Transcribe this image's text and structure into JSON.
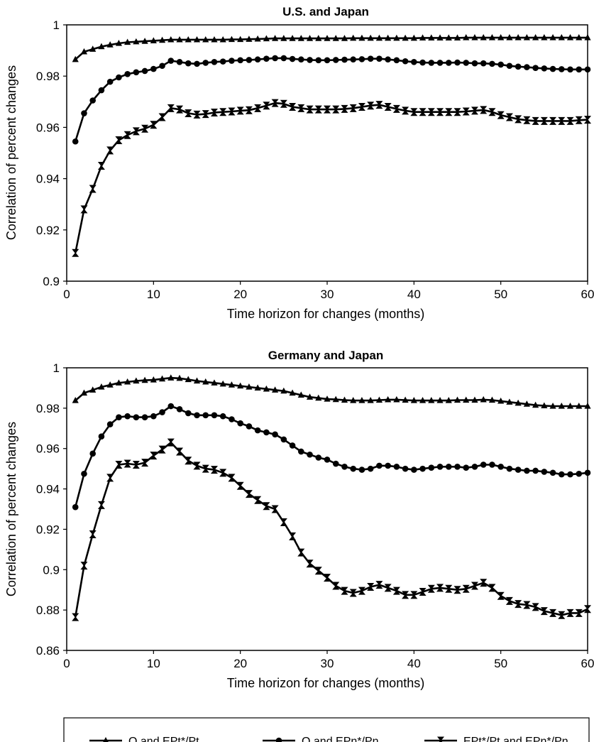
{
  "chart_data": [
    {
      "type": "line",
      "title": "U.S. and Japan",
      "xlabel": "Time horizon for changes (months)",
      "ylabel": "Correlation of percent changes",
      "xlim": [
        0,
        60
      ],
      "ylim": [
        0.9,
        1.0
      ],
      "xticks": [
        "0",
        "10",
        "20",
        "30",
        "40",
        "50",
        "60"
      ],
      "yticks": [
        "0.9",
        "0.92",
        "0.94",
        "0.96",
        "0.98",
        "1"
      ],
      "grid": false,
      "series": [
        {
          "name": "Q and EPt*/Pt",
          "marker": "triangle",
          "x": [
            1,
            2,
            3,
            4,
            5,
            6,
            7,
            8,
            9,
            10,
            11,
            12,
            13,
            14,
            15,
            16,
            17,
            18,
            19,
            20,
            21,
            22,
            23,
            24,
            25,
            26,
            27,
            28,
            29,
            30,
            31,
            32,
            33,
            34,
            35,
            36,
            37,
            38,
            39,
            40,
            41,
            42,
            43,
            44,
            45,
            46,
            47,
            48,
            49,
            50,
            51,
            52,
            53,
            54,
            55,
            56,
            57,
            58,
            59,
            60
          ],
          "values": [
            0.9865,
            0.9895,
            0.9905,
            0.9915,
            0.9922,
            0.9928,
            0.9932,
            0.9934,
            0.9936,
            0.9938,
            0.994,
            0.9942,
            0.9942,
            0.9942,
            0.9942,
            0.9942,
            0.9942,
            0.9942,
            0.9943,
            0.9943,
            0.9944,
            0.9945,
            0.9946,
            0.9947,
            0.9947,
            0.9947,
            0.9947,
            0.9947,
            0.9947,
            0.9947,
            0.9947,
            0.9947,
            0.9948,
            0.9948,
            0.9948,
            0.9948,
            0.9948,
            0.9948,
            0.9948,
            0.9948,
            0.9949,
            0.9949,
            0.9949,
            0.9949,
            0.9949,
            0.995,
            0.995,
            0.995,
            0.995,
            0.995,
            0.995,
            0.995,
            0.995,
            0.995,
            0.995,
            0.995,
            0.995,
            0.995,
            0.995,
            0.995
          ]
        },
        {
          "name": "Q and EPn*/Pn",
          "marker": "circle",
          "x": [
            1,
            2,
            3,
            4,
            5,
            6,
            7,
            8,
            9,
            10,
            11,
            12,
            13,
            14,
            15,
            16,
            17,
            18,
            19,
            20,
            21,
            22,
            23,
            24,
            25,
            26,
            27,
            28,
            29,
            30,
            31,
            32,
            33,
            34,
            35,
            36,
            37,
            38,
            39,
            40,
            41,
            42,
            43,
            44,
            45,
            46,
            47,
            48,
            49,
            50,
            51,
            52,
            53,
            54,
            55,
            56,
            57,
            58,
            59,
            60
          ],
          "values": [
            0.9545,
            0.9655,
            0.9705,
            0.9745,
            0.9778,
            0.9795,
            0.9808,
            0.9815,
            0.982,
            0.9828,
            0.984,
            0.986,
            0.9855,
            0.985,
            0.9848,
            0.9852,
            0.9855,
            0.9857,
            0.986,
            0.9862,
            0.9863,
            0.9865,
            0.9868,
            0.987,
            0.987,
            0.9867,
            0.9865,
            0.9863,
            0.9862,
            0.9862,
            0.9863,
            0.9864,
            0.9865,
            0.9866,
            0.9868,
            0.9868,
            0.9865,
            0.9862,
            0.9858,
            0.9855,
            0.9853,
            0.9852,
            0.9852,
            0.9852,
            0.9853,
            0.9852,
            0.985,
            0.985,
            0.9848,
            0.9845,
            0.984,
            0.9837,
            0.9835,
            0.9832,
            0.983,
            0.9828,
            0.9827,
            0.9826,
            0.9826,
            0.9826
          ]
        },
        {
          "name": "EPt*/Pt and EPn*/Pn",
          "marker": "hourglass",
          "x": [
            1,
            2,
            3,
            4,
            5,
            6,
            7,
            8,
            9,
            10,
            11,
            12,
            13,
            14,
            15,
            16,
            17,
            18,
            19,
            20,
            21,
            22,
            23,
            24,
            25,
            26,
            27,
            28,
            29,
            30,
            31,
            32,
            33,
            34,
            35,
            36,
            37,
            38,
            39,
            40,
            41,
            42,
            43,
            44,
            45,
            46,
            47,
            48,
            49,
            50,
            51,
            52,
            53,
            54,
            55,
            56,
            57,
            58,
            59,
            60
          ],
          "values": [
            0.911,
            0.928,
            0.936,
            0.945,
            0.951,
            0.955,
            0.957,
            0.9585,
            0.9595,
            0.961,
            0.964,
            0.9675,
            0.967,
            0.9655,
            0.965,
            0.9652,
            0.9658,
            0.966,
            0.9662,
            0.9665,
            0.9667,
            0.9675,
            0.9685,
            0.9695,
            0.9692,
            0.968,
            0.9675,
            0.967,
            0.967,
            0.967,
            0.967,
            0.9672,
            0.9675,
            0.968,
            0.9685,
            0.9688,
            0.968,
            0.9672,
            0.9665,
            0.966,
            0.966,
            0.966,
            0.966,
            0.966,
            0.966,
            0.9662,
            0.9665,
            0.9668,
            0.966,
            0.9648,
            0.964,
            0.9632,
            0.9628,
            0.9625,
            0.9625,
            0.9625,
            0.9625,
            0.9625,
            0.9628,
            0.963
          ]
        }
      ]
    },
    {
      "type": "line",
      "title": "Germany and Japan",
      "xlabel": "Time horizon for changes (months)",
      "ylabel": "Correlation of percent changes",
      "xlim": [
        0,
        60
      ],
      "ylim": [
        0.86,
        1.0
      ],
      "xticks": [
        "0",
        "10",
        "20",
        "30",
        "40",
        "50",
        "60"
      ],
      "yticks": [
        "0.86",
        "0.88",
        "0.9",
        "0.92",
        "0.94",
        "0.96",
        "0.98",
        "1"
      ],
      "grid": false,
      "series": [
        {
          "name": "Q and EPt*/Pt",
          "marker": "triangle",
          "x": [
            1,
            2,
            3,
            4,
            5,
            6,
            7,
            8,
            9,
            10,
            11,
            12,
            13,
            14,
            15,
            16,
            17,
            18,
            19,
            20,
            21,
            22,
            23,
            24,
            25,
            26,
            27,
            28,
            29,
            30,
            31,
            32,
            33,
            34,
            35,
            36,
            37,
            38,
            39,
            40,
            41,
            42,
            43,
            44,
            45,
            46,
            47,
            48,
            49,
            50,
            51,
            52,
            53,
            54,
            55,
            56,
            57,
            58,
            59,
            60
          ],
          "values": [
            0.9838,
            0.9875,
            0.989,
            0.9905,
            0.9915,
            0.9925,
            0.993,
            0.9935,
            0.9938,
            0.994,
            0.9945,
            0.995,
            0.9948,
            0.9942,
            0.9935,
            0.993,
            0.9925,
            0.992,
            0.9915,
            0.991,
            0.9905,
            0.99,
            0.9895,
            0.989,
            0.9885,
            0.9875,
            0.9865,
            0.9855,
            0.985,
            0.9845,
            0.9843,
            0.984,
            0.9838,
            0.9838,
            0.9838,
            0.984,
            0.9842,
            0.9842,
            0.984,
            0.9838,
            0.9838,
            0.9838,
            0.9838,
            0.9838,
            0.984,
            0.984,
            0.984,
            0.9842,
            0.984,
            0.9835,
            0.983,
            0.9825,
            0.982,
            0.9815,
            0.9812,
            0.981,
            0.981,
            0.981,
            0.981,
            0.981
          ]
        },
        {
          "name": "Q and EPn*/Pn",
          "marker": "circle",
          "x": [
            1,
            2,
            3,
            4,
            5,
            6,
            7,
            8,
            9,
            10,
            11,
            12,
            13,
            14,
            15,
            16,
            17,
            18,
            19,
            20,
            21,
            22,
            23,
            24,
            25,
            26,
            27,
            28,
            29,
            30,
            31,
            32,
            33,
            34,
            35,
            36,
            37,
            38,
            39,
            40,
            41,
            42,
            43,
            44,
            45,
            46,
            47,
            48,
            49,
            50,
            51,
            52,
            53,
            54,
            55,
            56,
            57,
            58,
            59,
            60
          ],
          "values": [
            0.931,
            0.9475,
            0.9575,
            0.966,
            0.972,
            0.9755,
            0.976,
            0.9755,
            0.9755,
            0.976,
            0.978,
            0.981,
            0.9795,
            0.9775,
            0.9765,
            0.9765,
            0.9765,
            0.976,
            0.9745,
            0.9725,
            0.971,
            0.969,
            0.968,
            0.967,
            0.9645,
            0.9615,
            0.9585,
            0.957,
            0.9555,
            0.9545,
            0.9525,
            0.951,
            0.95,
            0.9495,
            0.95,
            0.9515,
            0.9515,
            0.951,
            0.95,
            0.9495,
            0.95,
            0.9505,
            0.951,
            0.951,
            0.951,
            0.9505,
            0.951,
            0.952,
            0.952,
            0.951,
            0.95,
            0.9495,
            0.949,
            0.949,
            0.9485,
            0.948,
            0.9472,
            0.9472,
            0.9475,
            0.948
          ]
        },
        {
          "name": "EPt*/Pt and EPn*/Pn",
          "marker": "hourglass",
          "x": [
            1,
            2,
            3,
            4,
            5,
            6,
            7,
            8,
            9,
            10,
            11,
            12,
            13,
            14,
            15,
            16,
            17,
            18,
            19,
            20,
            21,
            22,
            23,
            24,
            25,
            26,
            27,
            28,
            29,
            30,
            31,
            32,
            33,
            34,
            35,
            36,
            37,
            38,
            39,
            40,
            41,
            42,
            43,
            44,
            45,
            46,
            47,
            48,
            49,
            50,
            51,
            52,
            53,
            54,
            55,
            56,
            57,
            58,
            59,
            60
          ],
          "values": [
            0.8765,
            0.902,
            0.9175,
            0.932,
            0.9455,
            0.952,
            0.9525,
            0.952,
            0.953,
            0.9565,
            0.9595,
            0.963,
            0.9585,
            0.954,
            0.9515,
            0.95,
            0.9495,
            0.948,
            0.9455,
            0.9415,
            0.9375,
            0.9345,
            0.9315,
            0.93,
            0.9235,
            0.9165,
            0.9085,
            0.903,
            0.8995,
            0.896,
            0.892,
            0.8895,
            0.8885,
            0.8895,
            0.8915,
            0.8925,
            0.891,
            0.8895,
            0.8875,
            0.8875,
            0.889,
            0.8905,
            0.891,
            0.8905,
            0.89,
            0.8905,
            0.892,
            0.8935,
            0.891,
            0.887,
            0.8845,
            0.883,
            0.8825,
            0.8815,
            0.8795,
            0.8785,
            0.8775,
            0.8785,
            0.8785,
            0.8805
          ]
        }
      ]
    }
  ],
  "legend": {
    "placement": "bottom",
    "items": [
      {
        "label": "Q and EPt*/Pt",
        "marker": "triangle"
      },
      {
        "label": "Q and EPn*/Pn",
        "marker": "circle"
      },
      {
        "label": "EPt*/Pt and EPn*/Pn",
        "marker": "hourglass"
      }
    ]
  },
  "colors": {
    "line": "#000000",
    "background": "#ffffff"
  }
}
